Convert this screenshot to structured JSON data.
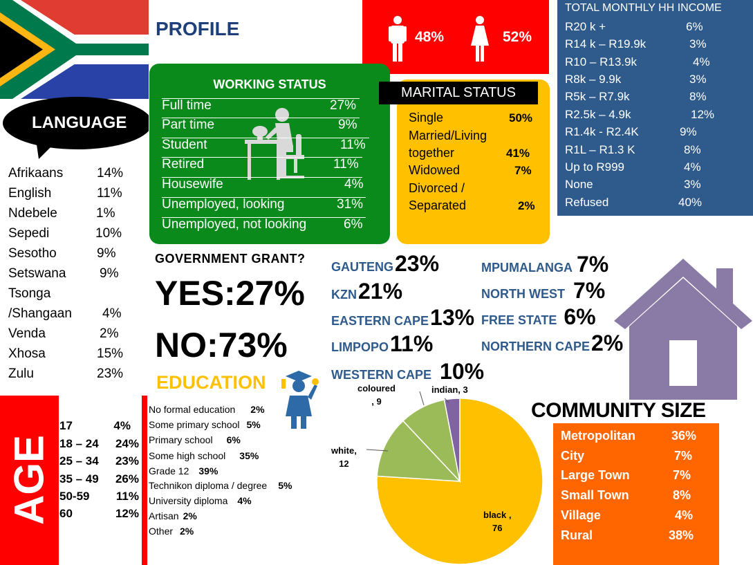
{
  "profile_title": "PROFILE",
  "gender": {
    "male": "48%",
    "female": "52%"
  },
  "income": {
    "title": "TOTAL MONTHLY HH INCOME",
    "rows": [
      {
        "label": "R20 k +",
        "value": "6%"
      },
      {
        "label": "R14 k – R19.9k",
        "value": "3%"
      },
      {
        "label": "R10 – R13.9k",
        "value": "4%"
      },
      {
        "label": "R8k – 9.9k",
        "value": "3%"
      },
      {
        "label": "R5k – R7.9k",
        "value": "8%"
      },
      {
        "label": "R2.5k – 4.9k",
        "value": "12%"
      },
      {
        "label": "R1.4k -  R2.4K",
        "value": "9%"
      },
      {
        "label": "R1L – R1.3 K",
        "value": "8%"
      },
      {
        "label": "Up  to R999",
        "value": "4%"
      },
      {
        "label": "None",
        "value": "3%"
      },
      {
        "label": "Refused",
        "value": "40%"
      }
    ]
  },
  "working": {
    "title": "WORKING STATUS",
    "rows": [
      {
        "label": "Full time",
        "value": "27%"
      },
      {
        "label": "Part time",
        "value": "9%"
      },
      {
        "label": "Student",
        "value": "11%"
      },
      {
        "label": "Retired",
        "value": "11%"
      },
      {
        "label": "Housewife",
        "value": "4%"
      },
      {
        "label": "Unemployed, looking",
        "value": "31%"
      },
      {
        "label": "Unemployed, not looking",
        "value": "6%"
      }
    ]
  },
  "marital": {
    "title": "MARITAL STATUS",
    "single_label": "Single",
    "single_value": "50%",
    "married_line1": "Married/Living",
    "married_line2": "together",
    "married_value": "41%",
    "widowed_label": "Widowed",
    "widowed_value": "7%",
    "divorced_line1": "Divorced /",
    "divorced_line2": "Separated",
    "divorced_value": "2%"
  },
  "language": {
    "title": "LANGUAGE",
    "rows": [
      {
        "label": "Afrikaans",
        "value": "14%"
      },
      {
        "label": "English",
        "value": "11%"
      },
      {
        "label": "Ndebele",
        "value": "1%"
      },
      {
        "label": "Sepedi",
        "value": "10%"
      },
      {
        "label": "Sesotho",
        "value": "9%"
      },
      {
        "label": "Setswana",
        "value": "9%"
      },
      {
        "label": "Tsonga",
        "value": ""
      },
      {
        "label": "/Shangaan",
        "value": "4%"
      },
      {
        "label": "Venda",
        "value": "2%"
      },
      {
        "label": "Xhosa",
        "value": "15%"
      },
      {
        "label": "Zulu",
        "value": "23%"
      }
    ]
  },
  "grant": {
    "question": "GOVERNMENT  GRANT?",
    "yes": "YES:27%",
    "no": "NO:73%"
  },
  "provinces": [
    {
      "name": "GAUTENG",
      "value": "23%"
    },
    {
      "name": "KZN",
      "value": "21%"
    },
    {
      "name": "EASTERN CAPE",
      "value": "13%"
    },
    {
      "name": "LIMPOPO",
      "value": "11%"
    },
    {
      "name": "WESTERN CAPE",
      "value": "10%"
    },
    {
      "name": "MPUMALANGA",
      "value": "7%"
    },
    {
      "name": "NORTH WEST",
      "value": "7%"
    },
    {
      "name": "FREE STATE",
      "value": "6%"
    },
    {
      "name": "NORTHERN CAPE",
      "value": "2%"
    }
  ],
  "education": {
    "title": "EDUCATION",
    "rows": [
      {
        "label": "No formal education",
        "value": "2%"
      },
      {
        "label": "Some primary school",
        "value": "5%"
      },
      {
        "label": "Primary school",
        "value": "6%"
      },
      {
        "label": "Some high school",
        "value": "35%"
      },
      {
        "label": "Grade 12",
        "value": "39%"
      },
      {
        "label": "Technikon diploma / degree",
        "value": "5%"
      },
      {
        "label": "University diploma",
        "value": "4%"
      },
      {
        "label": "Artisan",
        "value": "2%"
      },
      {
        "label": "Other",
        "value": "2%"
      }
    ]
  },
  "age": {
    "title": "AGE",
    "rows": [
      {
        "label": "17",
        "value": "4%"
      },
      {
        "label": "18 – 24",
        "value": "24%"
      },
      {
        "label": "25 – 34",
        "value": "23%"
      },
      {
        "label": "35 – 49",
        "value": "26%"
      },
      {
        "label": "50-59",
        "value": "11%"
      },
      {
        "label": "60",
        "value": "12%"
      }
    ]
  },
  "chart_data": {
    "type": "pie",
    "categories": [
      "black",
      "white",
      "coloured",
      "indian"
    ],
    "values": [
      76,
      12,
      9,
      3
    ],
    "labels": [
      "black , 76",
      "white, 12",
      "coloured , 9",
      "indian, 3"
    ],
    "colors": [
      "#ffc000",
      "#9bbb59",
      "#9bbb59",
      "#8064a2"
    ]
  },
  "pie_labels": {
    "black_name": "black ,",
    "black_value": "76",
    "white_name": "white,",
    "white_value": "12",
    "coloured_name": "coloured",
    "coloured_value": ", 9",
    "indian": "indian, 3"
  },
  "community": {
    "title": "COMMUNITY SIZE",
    "rows": [
      {
        "label": "Metropolitan",
        "value": "36%"
      },
      {
        "label": "City",
        "value": "7%"
      },
      {
        "label": "Large Town",
        "value": "7%"
      },
      {
        "label": "Small Town",
        "value": "8%"
      },
      {
        "label": "Village",
        "value": "4%"
      },
      {
        "label": "Rural",
        "value": "38%"
      }
    ]
  },
  "colors": {
    "red": "#ff0000",
    "green": "#0a8a1a",
    "amber": "#ffc000",
    "navy": "#2e5a8c",
    "orange": "#ff6600",
    "purple": "#8a7ba6"
  }
}
